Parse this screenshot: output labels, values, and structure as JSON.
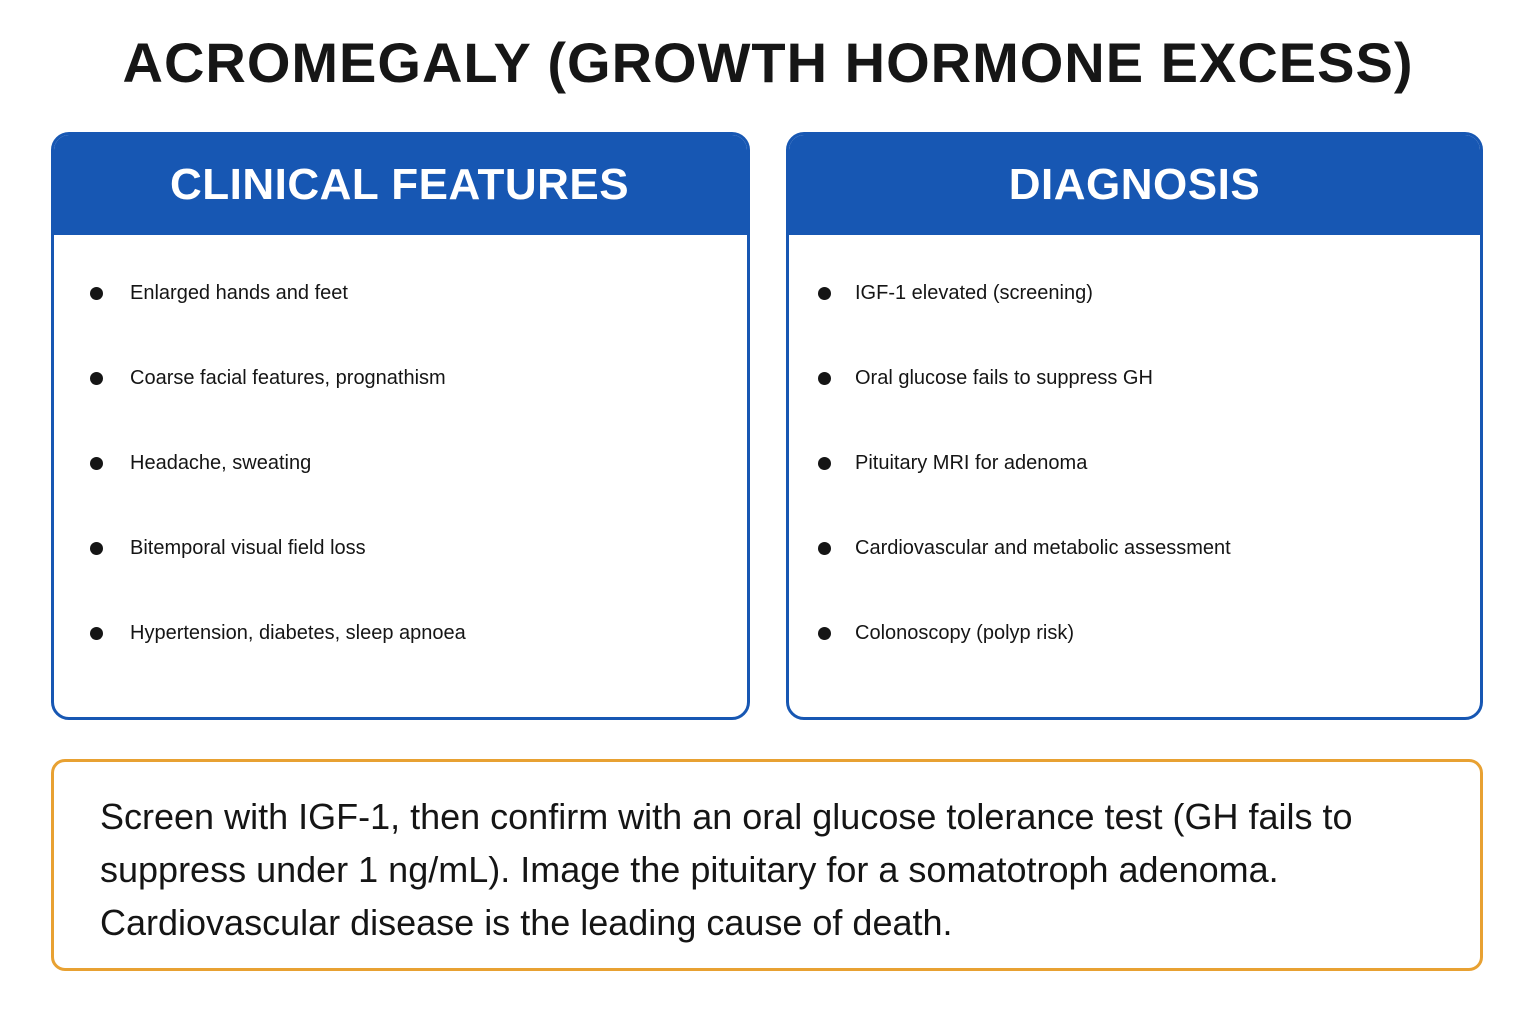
{
  "title": "ACROMEGALY (GROWTH HORMONE EXCESS)",
  "clinical_features": {
    "header": "CLINICAL FEATURES",
    "items": [
      "Enlarged hands and feet",
      "Coarse facial features, prognathism",
      "Headache, sweating",
      "Bitemporal visual field loss",
      "Hypertension, diabetes, sleep apnoea"
    ]
  },
  "diagnosis": {
    "header": "DIAGNOSIS",
    "items": [
      "IGF-1 elevated (screening)",
      "Oral glucose fails to suppress GH",
      "Pituitary MRI for adenoma",
      "Cardiovascular and metabolic assessment",
      "Colonoscopy (polyp risk)"
    ]
  },
  "note": {
    "text": "Screen with IGF-1, then confirm with an oral glucose tolerance test (GH fails to suppress under 1 ng/mL). Image the pituitary for a somatotroph adenoma. Cardiovascular disease is the leading cause of death."
  },
  "colors": {
    "header_blue": "#1757b3",
    "note_border": "#e8a132"
  }
}
